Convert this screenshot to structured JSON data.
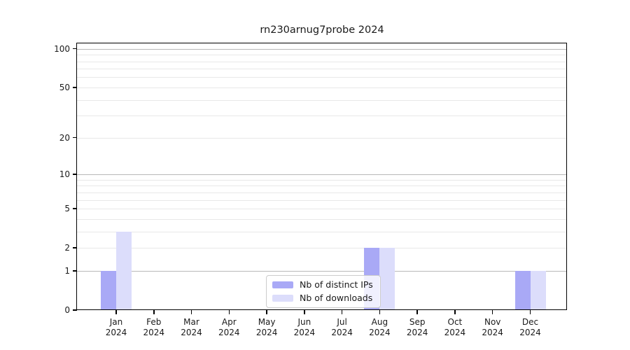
{
  "title": "rn230arnug7probe 2024",
  "chart_data": {
    "type": "bar",
    "title": "rn230arnug7probe 2024",
    "scale": "log1p",
    "categories": [
      "Jan",
      "Feb",
      "Mar",
      "Apr",
      "May",
      "Jun",
      "Jul",
      "Aug",
      "Sep",
      "Oct",
      "Nov",
      "Dec"
    ],
    "x_year_label": "2024",
    "series": [
      {
        "name": "Nb of distinct IPs",
        "color": "#a9a9f6",
        "values": [
          1,
          0,
          0,
          0,
          0,
          0,
          0,
          2,
          0,
          0,
          0,
          1
        ]
      },
      {
        "name": "Nb of downloads",
        "color": "#dcddfb",
        "values": [
          3,
          0,
          0,
          0,
          0,
          0,
          0,
          2,
          0,
          0,
          0,
          1
        ]
      }
    ],
    "xlabel": "",
    "ylabel": "",
    "ylim": [
      0,
      110
    ],
    "y_ticks": [
      0,
      1,
      2,
      5,
      10,
      20,
      50,
      100
    ],
    "y_gridlines": {
      "major": [
        1,
        10,
        100
      ],
      "minor": [
        2,
        3,
        4,
        5,
        6,
        7,
        8,
        9,
        20,
        30,
        40,
        50,
        60,
        70,
        80,
        90
      ]
    },
    "grid": "horizontal",
    "legend_position": "lower-center-inside",
    "colors": {
      "major_grid": "#b8b8b8",
      "minor_grid": "#e8e8e8",
      "spine": "#000000",
      "text": "#1a1a1a"
    }
  }
}
